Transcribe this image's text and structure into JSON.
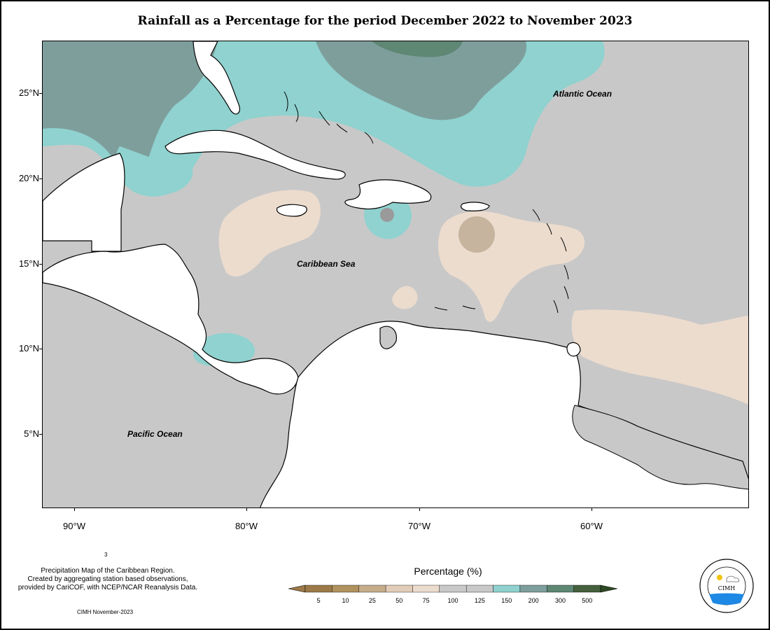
{
  "title": "Rainfall as a Percentage for the period December 2022 to November 2023",
  "axes": {
    "y_ticks": [
      {
        "label": "25°N",
        "lat": 25
      },
      {
        "label": "20°N",
        "lat": 20
      },
      {
        "label": "15°N",
        "lat": 15
      },
      {
        "label": "10°N",
        "lat": 10
      },
      {
        "label": "5°N",
        "lat": 5
      }
    ],
    "x_ticks": [
      {
        "label": "90°W",
        "lon": -90
      },
      {
        "label": "80°W",
        "lon": -80
      },
      {
        "label": "70°W",
        "lon": -70
      },
      {
        "label": "60°W",
        "lon": -60
      }
    ],
    "lon_range": [
      -92,
      -51
    ],
    "lat_range": [
      0.8,
      28.2
    ]
  },
  "ocean_labels": {
    "atlantic": "Atlantic Ocean",
    "caribbean": "Caribbean Sea",
    "pacific": "Pacific Ocean"
  },
  "note": {
    "line1": "Precipitation Map of the Caribbean Region.",
    "line2": "Created by aggregating station based observations,",
    "line3": "provided by CariCOF, with NCEP/NCAR Reanalysis Data."
  },
  "stamp": "CIMH November-2023",
  "stray_mark": "3",
  "legend": {
    "title": "Percentage (%)",
    "bins": [
      {
        "label": "5",
        "color": "#9c7a48"
      },
      {
        "label": "10",
        "color": "#b0925f"
      },
      {
        "label": "25",
        "color": "#c6ad8a"
      },
      {
        "label": "50",
        "color": "#e2cdb8"
      },
      {
        "label": "75",
        "color": "#ecdcce"
      },
      {
        "label": "100",
        "color": "#c8c8c8"
      },
      {
        "label": "125",
        "color": "#c8c8c8"
      },
      {
        "label": "150",
        "color": "#8fd2cf"
      },
      {
        "label": "200",
        "color": "#7e9e9c"
      },
      {
        "label": "300",
        "color": "#5e8774"
      },
      {
        "label": "500",
        "color": "#44603c"
      }
    ],
    "end_color": "#2e4a24"
  },
  "logo": {
    "text": "CIMH",
    "ring_text": "Caribbean Institute for Meteorology and Hydrology"
  },
  "colors": {
    "land": "#ffffff",
    "normal": "#c8c8c8",
    "above_normal": "#8fd2cf",
    "well_above": "#7e9e9c",
    "very_wet": "#5e8774",
    "below_normal": "#ecdcce",
    "much_below": "#c6b49e"
  }
}
